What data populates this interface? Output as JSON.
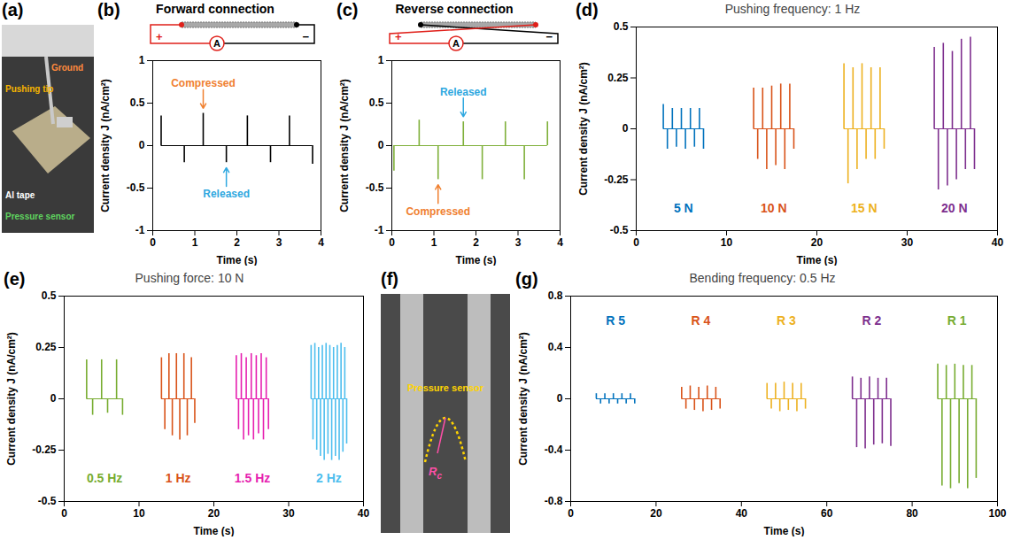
{
  "chart_data": [
    {
      "panel_label": "(b)",
      "type": "line",
      "title": "Forward connection",
      "circuit": {
        "plus": "+",
        "minus": "−",
        "meter": "A",
        "reversed": false
      },
      "xlabel": "Time (s)",
      "ylabel": "Current density J (nA/cm²)",
      "xlim": [
        0,
        4
      ],
      "xticks": [
        0,
        1,
        2,
        3,
        4
      ],
      "ylim": [
        -1,
        1
      ],
      "yticks": [
        -1,
        -0.5,
        0,
        0.5,
        1
      ],
      "series": [
        {
          "color": "#000000",
          "x": [
            0.2,
            0.75,
            1.2,
            1.75,
            2.25,
            2.8,
            3.25,
            3.8
          ],
          "values": [
            0.35,
            -0.2,
            0.38,
            -0.2,
            0.35,
            -0.2,
            0.35,
            -0.22
          ]
        }
      ],
      "annotations": [
        {
          "text": "Compressed",
          "x": 1.2,
          "y": 0.38,
          "color": "#f08030"
        },
        {
          "text": "Released",
          "x": 1.75,
          "y": -0.2,
          "color": "#2fa8e0"
        }
      ]
    },
    {
      "panel_label": "(c)",
      "type": "line",
      "title": "Reverse connection",
      "circuit": {
        "plus": "+",
        "minus": "−",
        "meter": "A",
        "reversed": true
      },
      "xlabel": "Time (s)",
      "ylabel": "Current density J (nA/cm²)",
      "xlim": [
        0,
        4
      ],
      "xticks": [
        0,
        1,
        2,
        3,
        4
      ],
      "ylim": [
        -1,
        1
      ],
      "yticks": [
        -1,
        -0.5,
        0,
        0.5,
        1
      ],
      "series": [
        {
          "color": "#7fb03a",
          "x": [
            0.05,
            0.65,
            1.1,
            1.7,
            2.15,
            2.7,
            3.15,
            3.7
          ],
          "values": [
            -0.3,
            0.3,
            -0.4,
            0.28,
            -0.4,
            0.28,
            -0.4,
            0.28
          ]
        }
      ],
      "annotations": [
        {
          "text": "Released",
          "x": 1.7,
          "y": 0.28,
          "color": "#2fa8e0"
        },
        {
          "text": "Compressed",
          "x": 1.1,
          "y": -0.4,
          "color": "#f08030"
        }
      ]
    },
    {
      "panel_label": "(d)",
      "type": "line",
      "title": "Pushing frequency: 1 Hz",
      "xlabel": "Time (s)",
      "ylabel": "Current density J (nA/cm²)",
      "xlim": [
        0,
        40
      ],
      "xticks": [
        0,
        10,
        20,
        30,
        40
      ],
      "ylim": [
        -0.5,
        0.5
      ],
      "yticks": [
        -0.5,
        -0.25,
        0,
        0.25,
        0.5
      ],
      "legend": "bottom",
      "series": [
        {
          "name": "5 N",
          "color": "#0072bd",
          "x": [
            3,
            3.45,
            4,
            4.45,
            5,
            5.45,
            6,
            6.45,
            7,
            7.45
          ],
          "values": [
            0.12,
            -0.1,
            0.1,
            -0.09,
            0.1,
            -0.1,
            0.1,
            -0.09,
            0.1,
            -0.1
          ]
        },
        {
          "name": "10 N",
          "color": "#d95319",
          "x": [
            13,
            13.45,
            14,
            14.45,
            15,
            15.45,
            16,
            16.45,
            17,
            17.45
          ],
          "values": [
            0.2,
            -0.15,
            0.2,
            -0.2,
            0.21,
            -0.18,
            0.22,
            -0.2,
            0.22,
            -0.1
          ]
        },
        {
          "name": "15 N",
          "color": "#edb120",
          "x": [
            23,
            23.45,
            24,
            24.45,
            25,
            25.45,
            26,
            26.45,
            27,
            27.45
          ],
          "values": [
            0.32,
            -0.27,
            0.3,
            -0.2,
            0.32,
            -0.15,
            0.3,
            -0.15,
            0.3,
            -0.1
          ]
        },
        {
          "name": "20 N",
          "color": "#7e2f8e",
          "x": [
            33,
            33.45,
            34,
            34.45,
            35,
            35.45,
            36,
            36.45,
            37,
            37.45
          ],
          "values": [
            0.4,
            -0.3,
            0.42,
            -0.28,
            0.38,
            -0.25,
            0.44,
            -0.2,
            0.45,
            -0.2
          ]
        }
      ]
    },
    {
      "panel_label": "(e)",
      "type": "line",
      "title": "Pushing force: 10 N",
      "xlabel": "Time (s)",
      "ylabel": "Current density J (nA/cm²)",
      "xlim": [
        0,
        40
      ],
      "xticks": [
        0,
        10,
        20,
        30,
        40
      ],
      "ylim": [
        -0.5,
        0.5
      ],
      "yticks": [
        -0.5,
        -0.25,
        0,
        0.25,
        0.5
      ],
      "legend": "bottom",
      "series": [
        {
          "name": "0.5 Hz",
          "color": "#77ac30",
          "x": [
            3,
            3.8,
            5,
            5.8,
            7,
            7.8
          ],
          "values": [
            0.19,
            -0.08,
            0.19,
            -0.07,
            0.19,
            -0.08
          ]
        },
        {
          "name": "1 Hz",
          "color": "#d95319",
          "x": [
            13,
            13.45,
            14,
            14.45,
            15,
            15.45,
            16,
            16.45,
            17,
            17.45
          ],
          "values": [
            0.2,
            -0.15,
            0.22,
            -0.18,
            0.22,
            -0.2,
            0.22,
            -0.18,
            0.2,
            -0.12
          ]
        },
        {
          "name": "1.5 Hz",
          "color": "#e61fb0",
          "x": [
            23,
            23.3,
            23.67,
            23.97,
            24.33,
            24.63,
            25,
            25.3,
            25.67,
            25.97,
            26.33,
            26.63,
            27,
            27.3
          ],
          "values": [
            0.21,
            -0.15,
            0.22,
            -0.2,
            0.2,
            -0.18,
            0.22,
            -0.2,
            0.21,
            -0.17,
            0.22,
            -0.2,
            0.2,
            -0.15
          ]
        },
        {
          "name": "2 Hz",
          "color": "#4dbeee",
          "x": [
            33,
            33.25,
            33.5,
            33.75,
            34,
            34.25,
            34.5,
            34.75,
            35,
            35.25,
            35.5,
            35.75,
            36,
            36.25,
            36.5,
            36.75,
            37,
            37.25,
            37.5,
            37.75
          ],
          "values": [
            0.26,
            -0.2,
            0.27,
            -0.25,
            0.25,
            -0.28,
            0.26,
            -0.3,
            0.27,
            -0.27,
            0.26,
            -0.3,
            0.25,
            -0.28,
            0.26,
            -0.3,
            0.27,
            -0.26,
            0.25,
            -0.22
          ]
        }
      ]
    },
    {
      "panel_label": "(g)",
      "type": "line",
      "title": "Bending frequency: 0.5 Hz",
      "xlabel": "Time (s)",
      "ylabel": "Current density J (nA/cm²)",
      "xlim": [
        0,
        100
      ],
      "xticks": [
        0,
        20,
        40,
        60,
        80,
        100
      ],
      "ylim": [
        -0.8,
        0.8
      ],
      "yticks": [
        -0.8,
        -0.4,
        0,
        0.4,
        0.8
      ],
      "legend": "top",
      "series": [
        {
          "name": "R 5",
          "color": "#0072bd",
          "x": [
            6,
            7,
            8,
            9,
            10,
            11,
            12,
            13,
            14,
            15
          ],
          "values": [
            0.04,
            -0.04,
            0.04,
            -0.04,
            0.04,
            -0.04,
            0.04,
            -0.04,
            0.04,
            -0.04
          ]
        },
        {
          "name": "R 4",
          "color": "#d95319",
          "x": [
            26,
            27,
            28,
            29,
            30,
            31,
            32,
            33,
            34,
            35
          ],
          "values": [
            0.09,
            -0.08,
            0.1,
            -0.09,
            0.09,
            -0.1,
            0.1,
            -0.09,
            0.09,
            -0.08
          ]
        },
        {
          "name": "R 3",
          "color": "#edb120",
          "x": [
            46,
            47,
            48,
            49,
            50,
            51,
            52,
            53,
            54,
            55
          ],
          "values": [
            0.12,
            -0.08,
            0.12,
            -0.1,
            0.13,
            -0.09,
            0.12,
            -0.1,
            0.12,
            -0.08
          ]
        },
        {
          "name": "R 2",
          "color": "#7e2f8e",
          "x": [
            66,
            67,
            68,
            69,
            70,
            71,
            72,
            73,
            74,
            75
          ],
          "values": [
            0.17,
            -0.38,
            0.16,
            -0.39,
            0.17,
            -0.36,
            0.16,
            -0.35,
            0.16,
            -0.37
          ]
        },
        {
          "name": "R 1",
          "color": "#77ac30",
          "x": [
            86,
            87,
            88,
            89,
            90,
            91,
            92,
            93,
            94,
            95
          ],
          "values": [
            0.27,
            -0.68,
            0.26,
            -0.7,
            0.27,
            -0.66,
            0.26,
            -0.7,
            0.26,
            -0.62
          ]
        }
      ]
    }
  ],
  "photos": [
    {
      "panel_label": "(a)",
      "labels": [
        {
          "text": "Pushing tip",
          "color": "#f5b400"
        },
        {
          "text": "Ground",
          "color": "#ff8a3d"
        },
        {
          "text": "Al tape",
          "color": "#ffffff"
        },
        {
          "text": "Pressure sensor",
          "color": "#5fd35f"
        }
      ]
    },
    {
      "panel_label": "(f)",
      "labels": [
        {
          "text": "Pressure sensor",
          "color": "#ffd400"
        },
        {
          "text": "R",
          "subscript": "c",
          "color": "#ff4fa8"
        }
      ]
    }
  ]
}
